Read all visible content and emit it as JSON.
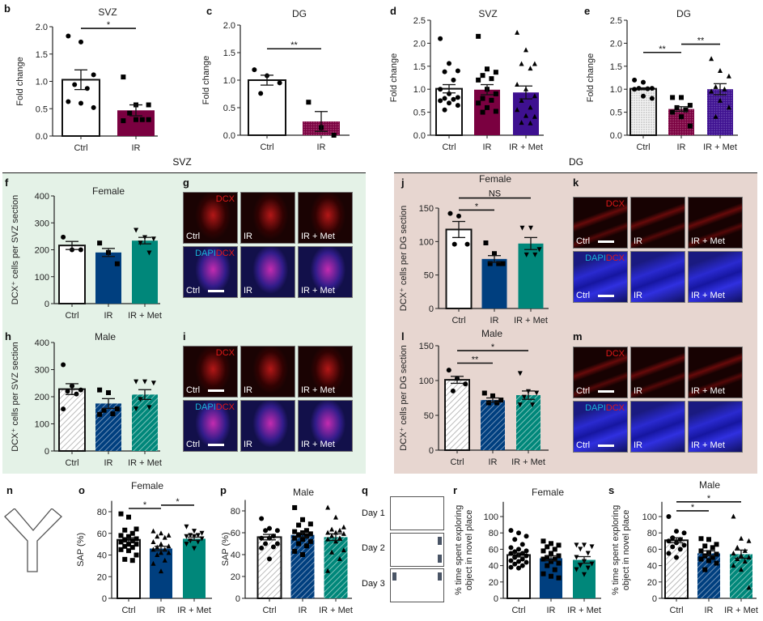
{
  "sections": {
    "svz": "SVZ",
    "dg": "DG"
  },
  "panel_letters": {
    "b": "b",
    "c": "c",
    "d": "d",
    "e": "e",
    "f": "f",
    "g": "g",
    "h": "h",
    "i": "i",
    "j": "j",
    "k": "k",
    "l": "l",
    "m": "m",
    "n": "n",
    "o": "o",
    "p": "p",
    "q": "q",
    "r": "r",
    "s": "s"
  },
  "microscopy": {
    "columns": [
      "Ctrl",
      "IR",
      "IR + Met"
    ],
    "stain_top": "DCX",
    "stain_bottom_a": "DAPI",
    "stain_bottom_b": "DCX"
  },
  "novel_place": {
    "days": [
      "Day 1",
      "Day 2",
      "Day 3"
    ]
  },
  "colors": {
    "ctrl": "#ffffff",
    "ir_maroon": "#7a0040",
    "met_purple": "#3e1090",
    "ir_navy": "#003f7f",
    "met_teal": "#00877a",
    "svz_bg": "#e4f2e7",
    "dg_bg": "#e7d6d0"
  },
  "chart_data": [
    {
      "id": "b",
      "type": "bar",
      "title": "SVZ",
      "ylabel": [
        "Fold change"
      ],
      "yticks": [
        "0.0",
        "0.5",
        "1.0",
        "1.5",
        "2.0"
      ],
      "ylim": [
        0,
        2
      ],
      "categories": [
        "Ctrl",
        "IR"
      ],
      "groups": [
        {
          "name": "Ctrl",
          "mean": 1.03,
          "sem": 0.18,
          "marker": "circle",
          "color": "#ffffff",
          "pattern": "solid",
          "points": [
            1.83,
            1.72,
            1.12,
            0.94,
            0.87,
            0.63,
            0.6,
            0.52
          ]
        },
        {
          "name": "IR",
          "mean": 0.47,
          "sem": 0.1,
          "marker": "square",
          "color": "#7a0040",
          "pattern": "solid",
          "points": [
            1.08,
            0.57,
            0.57,
            0.42,
            0.3,
            0.28,
            0.3,
            0.3
          ]
        }
      ],
      "significance": [
        {
          "from": 0,
          "to": 1,
          "label": "*",
          "y": 1.97
        }
      ]
    },
    {
      "id": "c",
      "type": "bar",
      "title": "DG",
      "ylabel": [
        "Fold change"
      ],
      "yticks": [
        "0.0",
        "0.5",
        "1.0",
        "1.5",
        "2.0"
      ],
      "ylim": [
        0,
        2
      ],
      "categories": [
        "Ctrl",
        "IR"
      ],
      "groups": [
        {
          "name": "Ctrl",
          "mean": 1.0,
          "sem": 0.09,
          "marker": "circle",
          "color": "#ffffff",
          "pattern": "solid",
          "points": [
            1.19,
            1.08,
            0.95,
            0.76
          ]
        },
        {
          "name": "IR",
          "mean": 0.25,
          "sem": 0.18,
          "marker": "square",
          "color": "#7a0040",
          "pattern": "dots",
          "points": [
            0.6,
            0.14,
            0.0
          ]
        }
      ],
      "significance": [
        {
          "from": 0,
          "to": 1,
          "label": "**",
          "y": 1.57
        }
      ]
    },
    {
      "id": "d",
      "type": "bar",
      "title": "SVZ",
      "ylabel": [
        "Fold change"
      ],
      "yticks": [
        "0.0",
        "0.5",
        "1.0",
        "1.5",
        "2.0",
        "2.5"
      ],
      "ylim": [
        0,
        2.5
      ],
      "categories": [
        "Ctrl",
        "IR",
        "IR + Met"
      ],
      "groups": [
        {
          "name": "Ctrl",
          "mean": 1.01,
          "sem": 0.09,
          "marker": "circle",
          "color": "#ffffff",
          "pattern": "solid",
          "points": [
            2.1,
            1.56,
            1.4,
            1.38,
            1.2,
            1.0,
            0.9,
            0.82,
            0.8,
            0.78,
            0.75,
            0.7,
            0.65,
            0.55
          ]
        },
        {
          "name": "IR",
          "mean": 0.99,
          "sem": 0.11,
          "marker": "square",
          "color": "#7a0040",
          "pattern": "solid",
          "points": [
            2.15,
            1.44,
            1.37,
            1.3,
            1.23,
            1.2,
            1.0,
            0.9,
            0.8,
            0.76,
            0.7,
            0.6,
            0.52,
            0.5
          ]
        },
        {
          "name": "IR + Met",
          "mean": 0.93,
          "sem": 0.14,
          "marker": "triangle",
          "color": "#3e1090",
          "pattern": "solid",
          "points": [
            2.23,
            1.85,
            1.55,
            1.55,
            1.45,
            1.1,
            1.0,
            0.85,
            0.75,
            0.6,
            0.55,
            0.42,
            0.4,
            0.27,
            0.26
          ]
        }
      ],
      "significance": []
    },
    {
      "id": "e",
      "type": "bar",
      "title": "DG",
      "ylabel": [
        "Fold change"
      ],
      "yticks": [
        "0.0",
        "0.5",
        "1.0",
        "1.5",
        "2.0",
        "2.5"
      ],
      "ylim": [
        0,
        2.5
      ],
      "categories": [
        "Ctrl",
        "IR",
        "IR + Met"
      ],
      "groups": [
        {
          "name": "Ctrl",
          "mean": 1.01,
          "sem": 0.02,
          "marker": "circle",
          "color": "#ffffff",
          "pattern": "dots",
          "points": [
            1.2,
            1.15,
            1.02,
            1.02,
            1.01,
            1.0,
            0.85,
            0.8
          ]
        },
        {
          "name": "IR",
          "mean": 0.57,
          "sem": 0.05,
          "marker": "square",
          "color": "#7a0040",
          "pattern": "dots",
          "points": [
            0.82,
            0.82,
            0.65,
            0.6,
            0.55,
            0.5,
            0.4,
            0.2
          ]
        },
        {
          "name": "IR + Met",
          "mean": 1.0,
          "sem": 0.12,
          "marker": "triangle",
          "color": "#3e1090",
          "pattern": "dots",
          "points": [
            1.66,
            1.4,
            1.28,
            1.05,
            1.0,
            0.95,
            0.75,
            0.6,
            0.4
          ]
        }
      ],
      "significance": [
        {
          "from": 0,
          "to": 1,
          "label": "**",
          "y": 1.8
        },
        {
          "from": 1,
          "to": 2,
          "label": "**",
          "y": 1.98
        }
      ]
    },
    {
      "id": "f",
      "type": "bar",
      "title": "Female",
      "ylabel": [
        "DCX⁺ cells per SVZ section"
      ],
      "yticks": [
        "0",
        "100",
        "200",
        "300",
        "400"
      ],
      "ylim": [
        0,
        400
      ],
      "categories": [
        "Ctrl",
        "IR",
        "IR + Met"
      ],
      "groups": [
        {
          "name": "Ctrl",
          "mean": 216,
          "sem": 15,
          "marker": "circle",
          "color": "#ffffff",
          "pattern": "solid",
          "points": [
            247,
            200,
            200
          ]
        },
        {
          "name": "IR",
          "mean": 190,
          "sem": 15,
          "marker": "square",
          "color": "#003f7f",
          "pattern": "solid",
          "points": [
            225,
            190,
            148
          ]
        },
        {
          "name": "IR + Met",
          "mean": 234,
          "sem": 12,
          "marker": "triangle-down",
          "color": "#00877a",
          "pattern": "solid",
          "points": [
            272,
            245,
            240,
            225,
            188
          ]
        }
      ],
      "significance": []
    },
    {
      "id": "h",
      "type": "bar",
      "title": "Male",
      "ylabel": [
        "DCX⁺ cells per SVZ section"
      ],
      "yticks": [
        "0",
        "100",
        "200",
        "300",
        "400"
      ],
      "ylim": [
        0,
        400
      ],
      "categories": [
        "Ctrl",
        "IR",
        "IR + Met"
      ],
      "groups": [
        {
          "name": "Ctrl",
          "mean": 228,
          "sem": 20,
          "marker": "circle",
          "color": "#ffffff",
          "pattern": "hatch",
          "points": [
            318,
            240,
            225,
            220,
            210,
            155
          ]
        },
        {
          "name": "IR",
          "mean": 175,
          "sem": 18,
          "marker": "square",
          "color": "#003f7f",
          "pattern": "hatch",
          "points": [
            225,
            215,
            155,
            150,
            137,
            135
          ]
        },
        {
          "name": "IR + Met",
          "mean": 208,
          "sem": 18,
          "marker": "triangle-down",
          "color": "#00877a",
          "pattern": "hatch",
          "points": [
            255,
            255,
            250,
            190,
            160,
            155
          ]
        }
      ],
      "significance": []
    },
    {
      "id": "j",
      "type": "bar",
      "title": "Female",
      "ylabel": [
        "DCX⁺ cells per DG section"
      ],
      "yticks": [
        "0",
        "50",
        "100",
        "150"
      ],
      "ylim": [
        0,
        150
      ],
      "categories": [
        "Ctrl",
        "IR",
        "IR + Met"
      ],
      "groups": [
        {
          "name": "Ctrl",
          "mean": 118,
          "sem": 12,
          "marker": "circle",
          "color": "#ffffff",
          "pattern": "solid",
          "points": [
            142,
            138,
            96,
            96
          ]
        },
        {
          "name": "IR",
          "mean": 74,
          "sem": 5,
          "marker": "square",
          "color": "#003f7f",
          "pattern": "solid",
          "points": [
            98,
            82,
            67,
            67,
            67
          ]
        },
        {
          "name": "IR + Met",
          "mean": 97,
          "sem": 9,
          "marker": "triangle-down",
          "color": "#00877a",
          "pattern": "solid",
          "points": [
            120,
            120,
            88,
            80,
            80
          ]
        }
      ],
      "significance": [
        {
          "from": 0,
          "to": 1,
          "label": "*",
          "y": 147
        },
        {
          "from": 0,
          "to": 2,
          "label": "NS",
          "y": 165
        }
      ]
    },
    {
      "id": "l",
      "type": "bar",
      "title": "Male",
      "ylabel": [
        "DCX⁺ cells per DG section"
      ],
      "yticks": [
        "0",
        "50",
        "100",
        "150"
      ],
      "ylim": [
        0,
        150
      ],
      "categories": [
        "Ctrl",
        "IR",
        "IR + Met"
      ],
      "groups": [
        {
          "name": "Ctrl",
          "mean": 101,
          "sem": 5,
          "marker": "circle",
          "color": "#ffffff",
          "pattern": "hatch",
          "points": [
            115,
            103,
            95,
            85
          ]
        },
        {
          "name": "IR",
          "mean": 72,
          "sem": 3,
          "marker": "square",
          "color": "#003f7f",
          "pattern": "hatch",
          "points": [
            82,
            78,
            72,
            68,
            68
          ]
        },
        {
          "name": "IR + Met",
          "mean": 79,
          "sem": 6,
          "marker": "triangle-down",
          "color": "#00877a",
          "pattern": "hatch",
          "points": [
            110,
            84,
            82,
            76,
            65,
            65
          ]
        }
      ],
      "significance": [
        {
          "from": 0,
          "to": 1,
          "label": "**",
          "y": 125
        },
        {
          "from": 0,
          "to": 2,
          "label": "*",
          "y": 143
        }
      ]
    },
    {
      "id": "o",
      "type": "bar",
      "title": "Female",
      "ylabel": [
        "SAP (%)"
      ],
      "yticks": [
        "0",
        "20",
        "40",
        "60",
        "80"
      ],
      "ylim": [
        0,
        90
      ],
      "categories": [
        "Ctrl",
        "IR",
        "IR + Met"
      ],
      "groups": [
        {
          "name": "Ctrl",
          "mean": 54,
          "sem": 2,
          "marker": "square",
          "color": "#ffffff",
          "pattern": "solid",
          "points": [
            78,
            75,
            64,
            63,
            60,
            58,
            57,
            55,
            54,
            53,
            52,
            50,
            50,
            48,
            47,
            45,
            44,
            40,
            36,
            35
          ]
        },
        {
          "name": "IR",
          "mean": 46,
          "sem": 2,
          "marker": "triangle",
          "color": "#003f7f",
          "pattern": "solid",
          "points": [
            62,
            60,
            58,
            57,
            56,
            52,
            50,
            48,
            47,
            45,
            45,
            42,
            42,
            40,
            35,
            32,
            25
          ]
        },
        {
          "name": "IR + Met",
          "mean": 55,
          "sem": 1.5,
          "marker": "triangle-down",
          "color": "#00877a",
          "pattern": "solid",
          "points": [
            66,
            62,
            60,
            58,
            58,
            57,
            57,
            55,
            53,
            52,
            50,
            46
          ]
        }
      ],
      "significance": [
        {
          "from": 0,
          "to": 1,
          "label": "*",
          "y": 83
        },
        {
          "from": 1,
          "to": 2,
          "label": "*",
          "y": 86
        }
      ]
    },
    {
      "id": "p",
      "type": "bar",
      "title": "Male",
      "ylabel": [
        "SAP (%)"
      ],
      "yticks": [
        "0",
        "20",
        "40",
        "60",
        "80"
      ],
      "ylim": [
        0,
        90
      ],
      "categories": [
        "Ctrl",
        "IR",
        "IR + Met"
      ],
      "groups": [
        {
          "name": "Ctrl",
          "mean": 56,
          "sem": 2.5,
          "marker": "circle",
          "color": "#ffffff",
          "pattern": "hatch",
          "points": [
            73,
            64,
            62,
            62,
            57,
            55,
            55,
            50,
            50,
            47,
            46,
            36
          ]
        },
        {
          "name": "IR",
          "mean": 58,
          "sem": 2,
          "marker": "square",
          "color": "#003f7f",
          "pattern": "hatch",
          "points": [
            83,
            72,
            68,
            67,
            62,
            61,
            60,
            59,
            58,
            57,
            55,
            54,
            52,
            50,
            48,
            43,
            40
          ]
        },
        {
          "name": "IR + Met",
          "mean": 56,
          "sem": 3,
          "marker": "triangle",
          "color": "#00877a",
          "pattern": "hatch",
          "points": [
            83,
            74,
            65,
            63,
            62,
            60,
            60,
            59,
            57,
            55,
            54,
            52,
            44,
            42,
            36,
            25
          ]
        }
      ],
      "significance": []
    },
    {
      "id": "r",
      "type": "bar",
      "title": "Female",
      "ylabel": [
        "% time spent exploring",
        "object in novel place"
      ],
      "yticks": [
        "0",
        "20",
        "40",
        "60",
        "80",
        "100"
      ],
      "ylim": [
        0,
        118
      ],
      "categories": [
        "Ctrl",
        "IR",
        "IR + Met"
      ],
      "groups": [
        {
          "name": "Ctrl",
          "mean": 53,
          "sem": 2.5,
          "marker": "circle",
          "color": "#ffffff",
          "pattern": "solid",
          "points": [
            83,
            80,
            76,
            72,
            66,
            62,
            60,
            58,
            57,
            55,
            55,
            53,
            52,
            50,
            48,
            46,
            45,
            44,
            42,
            40,
            38,
            37
          ]
        },
        {
          "name": "IR",
          "mean": 49,
          "sem": 3,
          "marker": "square",
          "color": "#003f7f",
          "pattern": "solid",
          "points": [
            70,
            67,
            65,
            63,
            60,
            58,
            55,
            52,
            50,
            48,
            48,
            45,
            43,
            40,
            35,
            30,
            27,
            25
          ]
        },
        {
          "name": "IR + Met",
          "mean": 47,
          "sem": 4,
          "marker": "triangle-down",
          "color": "#00877a",
          "pattern": "solid",
          "points": [
            65,
            65,
            63,
            60,
            55,
            50,
            45,
            42,
            40,
            37,
            35,
            29
          ]
        }
      ],
      "significance": []
    },
    {
      "id": "s",
      "type": "bar",
      "title": "Male",
      "ylabel": [
        "% time spent exploring",
        "object in novel place"
      ],
      "yticks": [
        "0",
        "20",
        "40",
        "60",
        "80",
        "100"
      ],
      "ylim": [
        0,
        118
      ],
      "categories": [
        "Ctrl",
        "IR",
        "IR + Met"
      ],
      "groups": [
        {
          "name": "Ctrl",
          "mean": 71,
          "sem": 3,
          "marker": "circle",
          "color": "#ffffff",
          "pattern": "hatch",
          "points": [
            100,
            82,
            80,
            74,
            72,
            70,
            68,
            65,
            63,
            60,
            55,
            50
          ]
        },
        {
          "name": "IR",
          "mean": 55,
          "sem": 3,
          "marker": "square",
          "color": "#003f7f",
          "pattern": "hatch",
          "points": [
            73,
            72,
            66,
            64,
            62,
            58,
            56,
            54,
            52,
            50,
            48,
            46,
            43,
            35
          ]
        },
        {
          "name": "IR + Met",
          "mean": 54,
          "sem": 5,
          "marker": "triangle",
          "color": "#00877a",
          "pattern": "hatch",
          "points": [
            100,
            73,
            70,
            62,
            58,
            55,
            52,
            50,
            48,
            45,
            40,
            35,
            13
          ]
        }
      ],
      "significance": [
        {
          "from": 0,
          "to": 1,
          "label": "*",
          "y": 107
        },
        {
          "from": 0,
          "to": 2,
          "label": "*",
          "y": 118
        }
      ]
    }
  ]
}
